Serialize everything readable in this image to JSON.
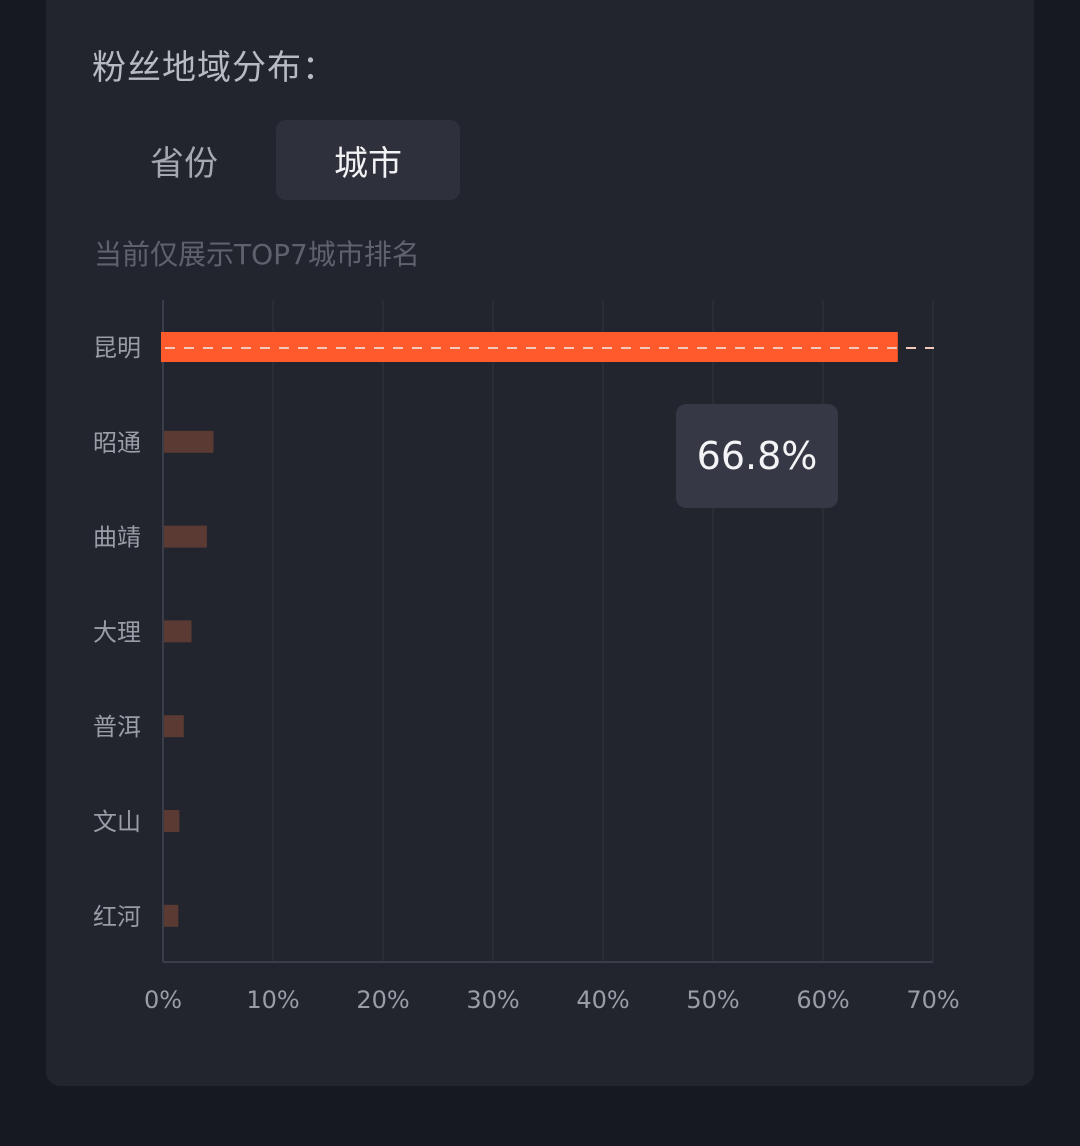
{
  "section": {
    "title": "粉丝地域分布："
  },
  "tabs": [
    {
      "label": "省份",
      "active": false
    },
    {
      "label": "城市",
      "active": true
    }
  ],
  "hint": "当前仅展示TOP7城市排名",
  "tooltip": {
    "value": "66.8%"
  },
  "colors": {
    "highlight_bar": "#ff5a2b",
    "bar": "#5a3a33",
    "axis": "#3b3d48",
    "grid": "#2c2e39",
    "label": "#9a9ca6"
  },
  "chart_data": {
    "type": "bar",
    "orientation": "horizontal",
    "categories": [
      "昆明",
      "昭通",
      "曲靖",
      "大理",
      "普洱",
      "文山",
      "红河"
    ],
    "values": [
      66.8,
      4.5,
      3.9,
      2.5,
      1.8,
      1.4,
      1.3
    ],
    "x_ticks": [
      "0%",
      "10%",
      "20%",
      "30%",
      "40%",
      "50%",
      "60%",
      "70%"
    ],
    "xlim": [
      0,
      70
    ],
    "unit": "%",
    "highlighted_index": 0,
    "grid": true
  }
}
